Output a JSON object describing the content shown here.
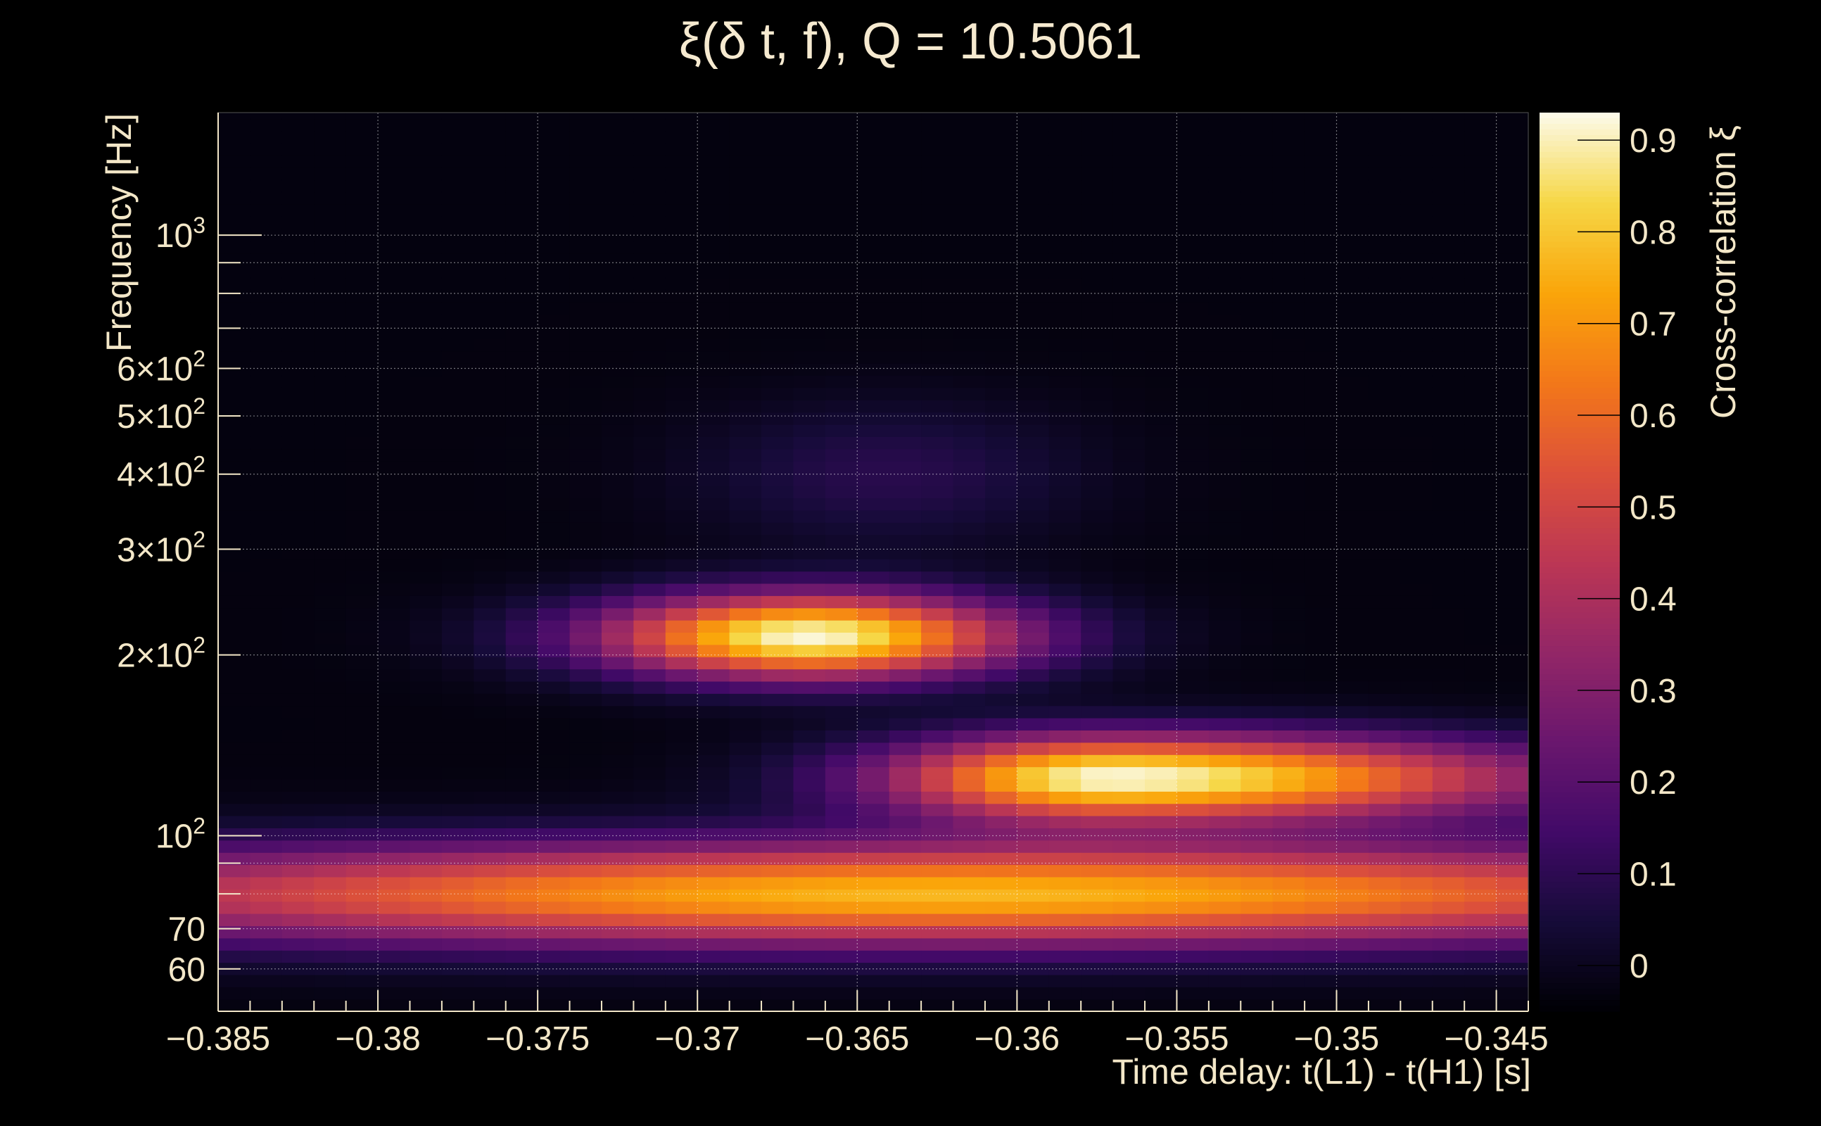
{
  "chart_data": {
    "type": "heatmap",
    "title": "ξ(δ t, f), Q = 10.5061",
    "xlabel": "Time delay: t(L1) - t(H1) [s]",
    "ylabel": "Frequency [Hz]",
    "colorbar_label": "Cross-correlation ξ",
    "x_range": [
      -0.385,
      -0.344
    ],
    "y_range": [
      51,
      1600
    ],
    "y_scale": "log",
    "color_range": [
      -0.05,
      0.93
    ],
    "colormap": "inferno",
    "grid": true,
    "x_ticks": [
      {
        "value": -0.385,
        "label": "−0.385"
      },
      {
        "value": -0.38,
        "label": "−0.38"
      },
      {
        "value": -0.375,
        "label": "−0.375"
      },
      {
        "value": -0.37,
        "label": "−0.37"
      },
      {
        "value": -0.365,
        "label": "−0.365"
      },
      {
        "value": -0.36,
        "label": "−0.36"
      },
      {
        "value": -0.355,
        "label": "−0.355"
      },
      {
        "value": -0.35,
        "label": "−0.35"
      },
      {
        "value": -0.345,
        "label": "−0.345"
      }
    ],
    "y_ticks": [
      {
        "value": 60,
        "label": "60"
      },
      {
        "value": 70,
        "label": "70"
      },
      {
        "value": 100,
        "label": "10",
        "sup": "2"
      },
      {
        "value": 200,
        "label": "2×10",
        "sup": "2"
      },
      {
        "value": 300,
        "label": "3×10",
        "sup": "2"
      },
      {
        "value": 400,
        "label": "4×10",
        "sup": "2"
      },
      {
        "value": 500,
        "label": "5×10",
        "sup": "2"
      },
      {
        "value": 600,
        "label": "6×10",
        "sup": "2"
      },
      {
        "value": 1000,
        "label": "10",
        "sup": "3"
      }
    ],
    "colorbar_ticks": [
      {
        "value": 0,
        "label": "0"
      },
      {
        "value": 0.1,
        "label": "0.1"
      },
      {
        "value": 0.2,
        "label": "0.2"
      },
      {
        "value": 0.3,
        "label": "0.3"
      },
      {
        "value": 0.4,
        "label": "0.4"
      },
      {
        "value": 0.5,
        "label": "0.5"
      },
      {
        "value": 0.6,
        "label": "0.6"
      },
      {
        "value": 0.7,
        "label": "0.7"
      },
      {
        "value": 0.8,
        "label": "0.8"
      },
      {
        "value": 0.9,
        "label": "0.9"
      }
    ],
    "features": [
      {
        "band": "low-frequency ridge",
        "freq_hz": [
          66,
          100
        ],
        "peak_xi": 0.85,
        "peak_delay_s": -0.362
      },
      {
        "band": "upper lobe",
        "freq_hz": [
          160,
          280
        ],
        "peak_xi": 0.93,
        "peak_delay_s": -0.3665
      },
      {
        "band": "mid lobe",
        "freq_hz": [
          105,
          160
        ],
        "peak_xi": 0.93,
        "peak_delay_s": -0.357
      }
    ]
  }
}
